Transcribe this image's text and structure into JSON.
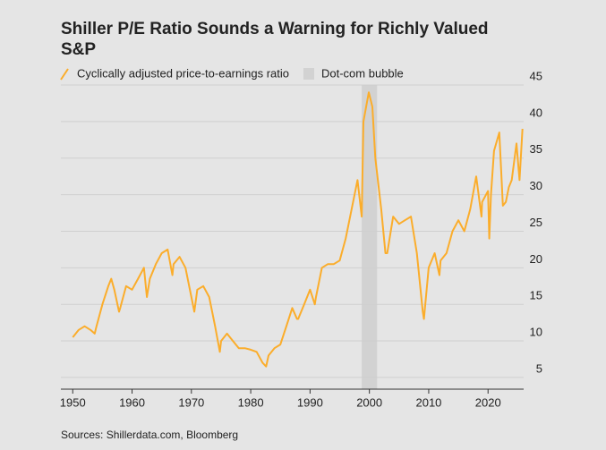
{
  "chart_data": {
    "type": "line",
    "title": "Shiller P/E Ratio Sounds a Warning for Richly Valued S&P",
    "source": "Sources: Shillerdata.com, Bloomberg",
    "xlim": [
      1948,
      2026
    ],
    "xticks": [
      1950,
      1960,
      1970,
      1980,
      1990,
      2000,
      2010,
      2020
    ],
    "ylim": [
      3.4,
      45
    ],
    "yticks": [
      5,
      10,
      15,
      20,
      25,
      30,
      35,
      40,
      45
    ],
    "grid": true,
    "bands": [
      {
        "name": "Dot-com bubble",
        "color": "#d2d2d2",
        "x": [
          1998.7,
          2001.3
        ]
      }
    ],
    "series": [
      {
        "name": "Cyclically adjusted price-to-earnings ratio",
        "color": "#fbad2b",
        "x": [
          1950,
          1950.5,
          1951,
          1952,
          1953,
          1953.7,
          1954,
          1955,
          1956,
          1956.5,
          1957,
          1957.8,
          1958,
          1959,
          1960,
          1961,
          1962,
          1962.5,
          1963,
          1964,
          1965,
          1966,
          1966.8,
          1967,
          1968,
          1969,
          1970,
          1970.5,
          1971,
          1972,
          1973,
          1974,
          1974.8,
          1975,
          1976,
          1977,
          1978,
          1979,
          1980,
          1981,
          1982,
          1982.6,
          1983,
          1984,
          1985,
          1986,
          1987,
          1987.8,
          1988,
          1989,
          1990,
          1990.8,
          1991,
          1992,
          1993,
          1994,
          1995,
          1996,
          1997,
          1998,
          1998.7,
          1999,
          1999.9,
          2000.5,
          2001,
          2002,
          2002.7,
          2003,
          2004,
          2005,
          2006,
          2007,
          2008,
          2009,
          2009.2,
          2010,
          2011,
          2011.8,
          2012,
          2013,
          2014,
          2015,
          2016,
          2017,
          2018,
          2018.9,
          2019,
          2020,
          2020.2,
          2020.5,
          2021,
          2021.9,
          2022.5,
          2023,
          2023.5,
          2024,
          2024.8,
          2025.3,
          2025.8
        ],
        "values": [
          10.5,
          11,
          11.5,
          12,
          11.5,
          11,
          12,
          15,
          17.5,
          18.5,
          17,
          14,
          14.5,
          17.5,
          17,
          18.5,
          20,
          16,
          18.5,
          20.5,
          22,
          22.5,
          19,
          20.5,
          21.5,
          20,
          16,
          14,
          17,
          17.5,
          16,
          12,
          8.5,
          10,
          11,
          10,
          9,
          9,
          8.8,
          8.5,
          7,
          6.5,
          8,
          9,
          9.5,
          12,
          14.5,
          13,
          13,
          15,
          17,
          15,
          16,
          20,
          20.5,
          20.5,
          21,
          24,
          28,
          32,
          27,
          40,
          44,
          42,
          35,
          28,
          22,
          22,
          27,
          26,
          26.5,
          27,
          22,
          14,
          13,
          20,
          22,
          19,
          21,
          22,
          25,
          26.5,
          25,
          28,
          32.5,
          27,
          29,
          30.5,
          24,
          30,
          36,
          38.5,
          28.5,
          29,
          31,
          32,
          37,
          32,
          39
        ]
      }
    ]
  }
}
